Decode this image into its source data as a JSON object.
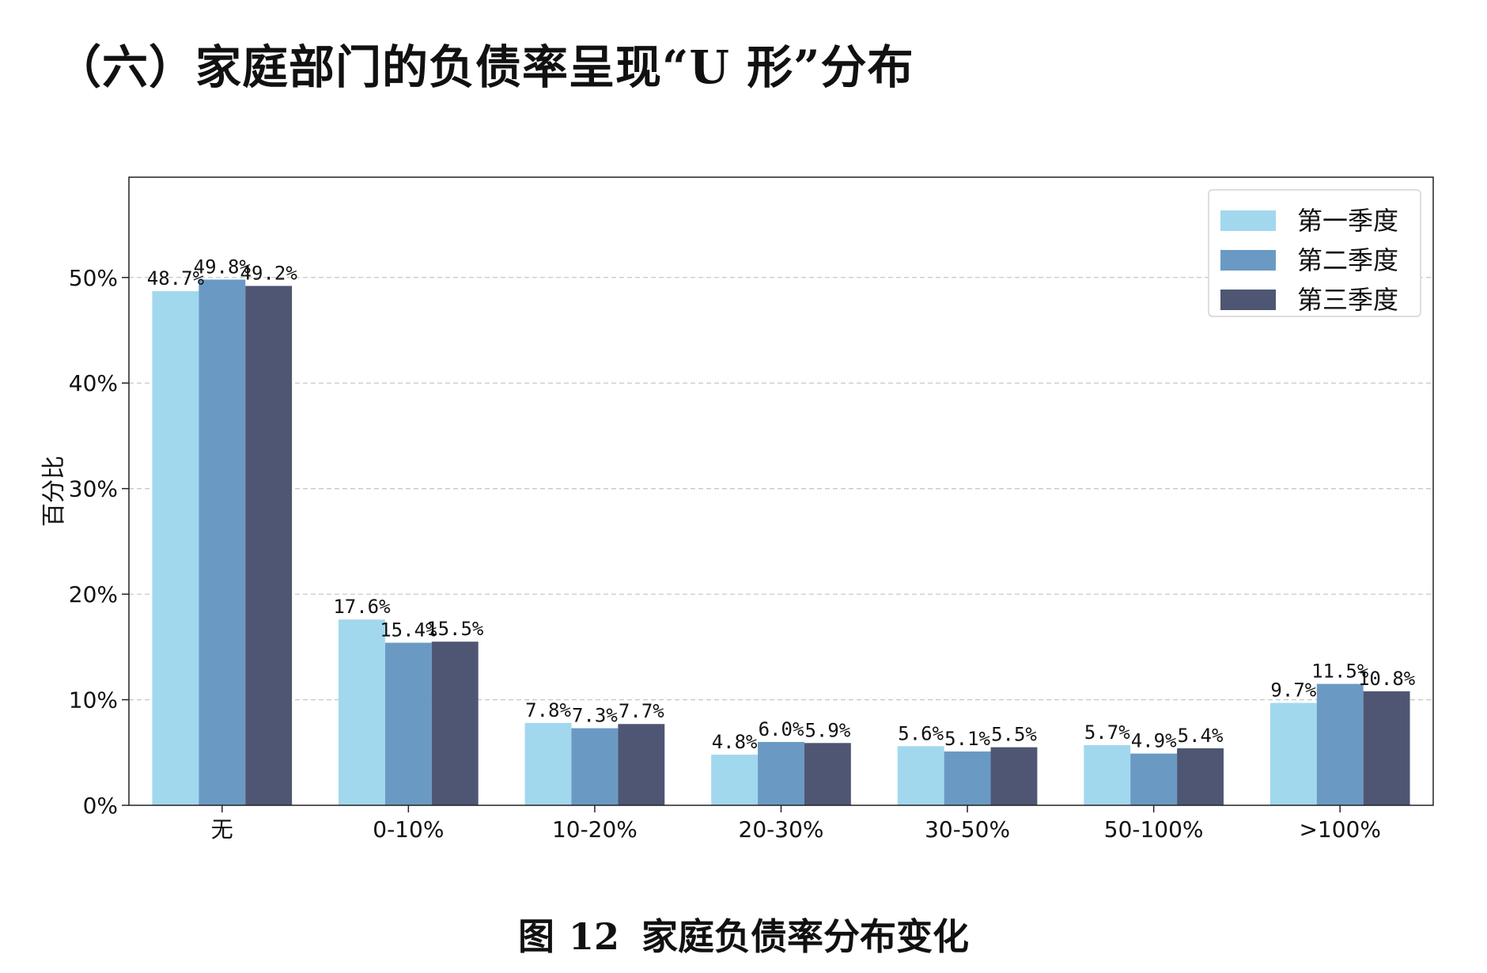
{
  "heading": "（六）家庭部门的负债率呈现“U 形”分布",
  "caption": {
    "label": "图",
    "number": "12",
    "text": "家庭负债率分布变化"
  },
  "chart_data": {
    "type": "bar",
    "title": "",
    "xlabel": "",
    "ylabel": "百分比",
    "categories": [
      "无",
      "0-10%",
      "10-20%",
      "20-30%",
      "30-50%",
      "50-100%",
      ">100%"
    ],
    "series": [
      {
        "name": "第一季度",
        "color": "#a1d8ee",
        "values": [
          48.7,
          17.6,
          7.8,
          4.8,
          5.6,
          5.7,
          9.7
        ]
      },
      {
        "name": "第二季度",
        "color": "#6a9ac4",
        "values": [
          49.8,
          15.4,
          7.3,
          6.0,
          5.1,
          4.9,
          11.5
        ]
      },
      {
        "name": "第三季度",
        "color": "#4f5673",
        "values": [
          49.2,
          15.5,
          7.7,
          5.9,
          5.5,
          5.4,
          10.8
        ]
      }
    ],
    "ylim": [
      0,
      59.5
    ],
    "yticks": [
      0,
      10,
      20,
      30,
      40,
      50
    ],
    "ytick_labels": [
      "0%",
      "10%",
      "20%",
      "30%",
      "40%",
      "50%"
    ],
    "value_suffix": "%",
    "grid": "horizontal dashed",
    "legend_position": "top-right"
  }
}
